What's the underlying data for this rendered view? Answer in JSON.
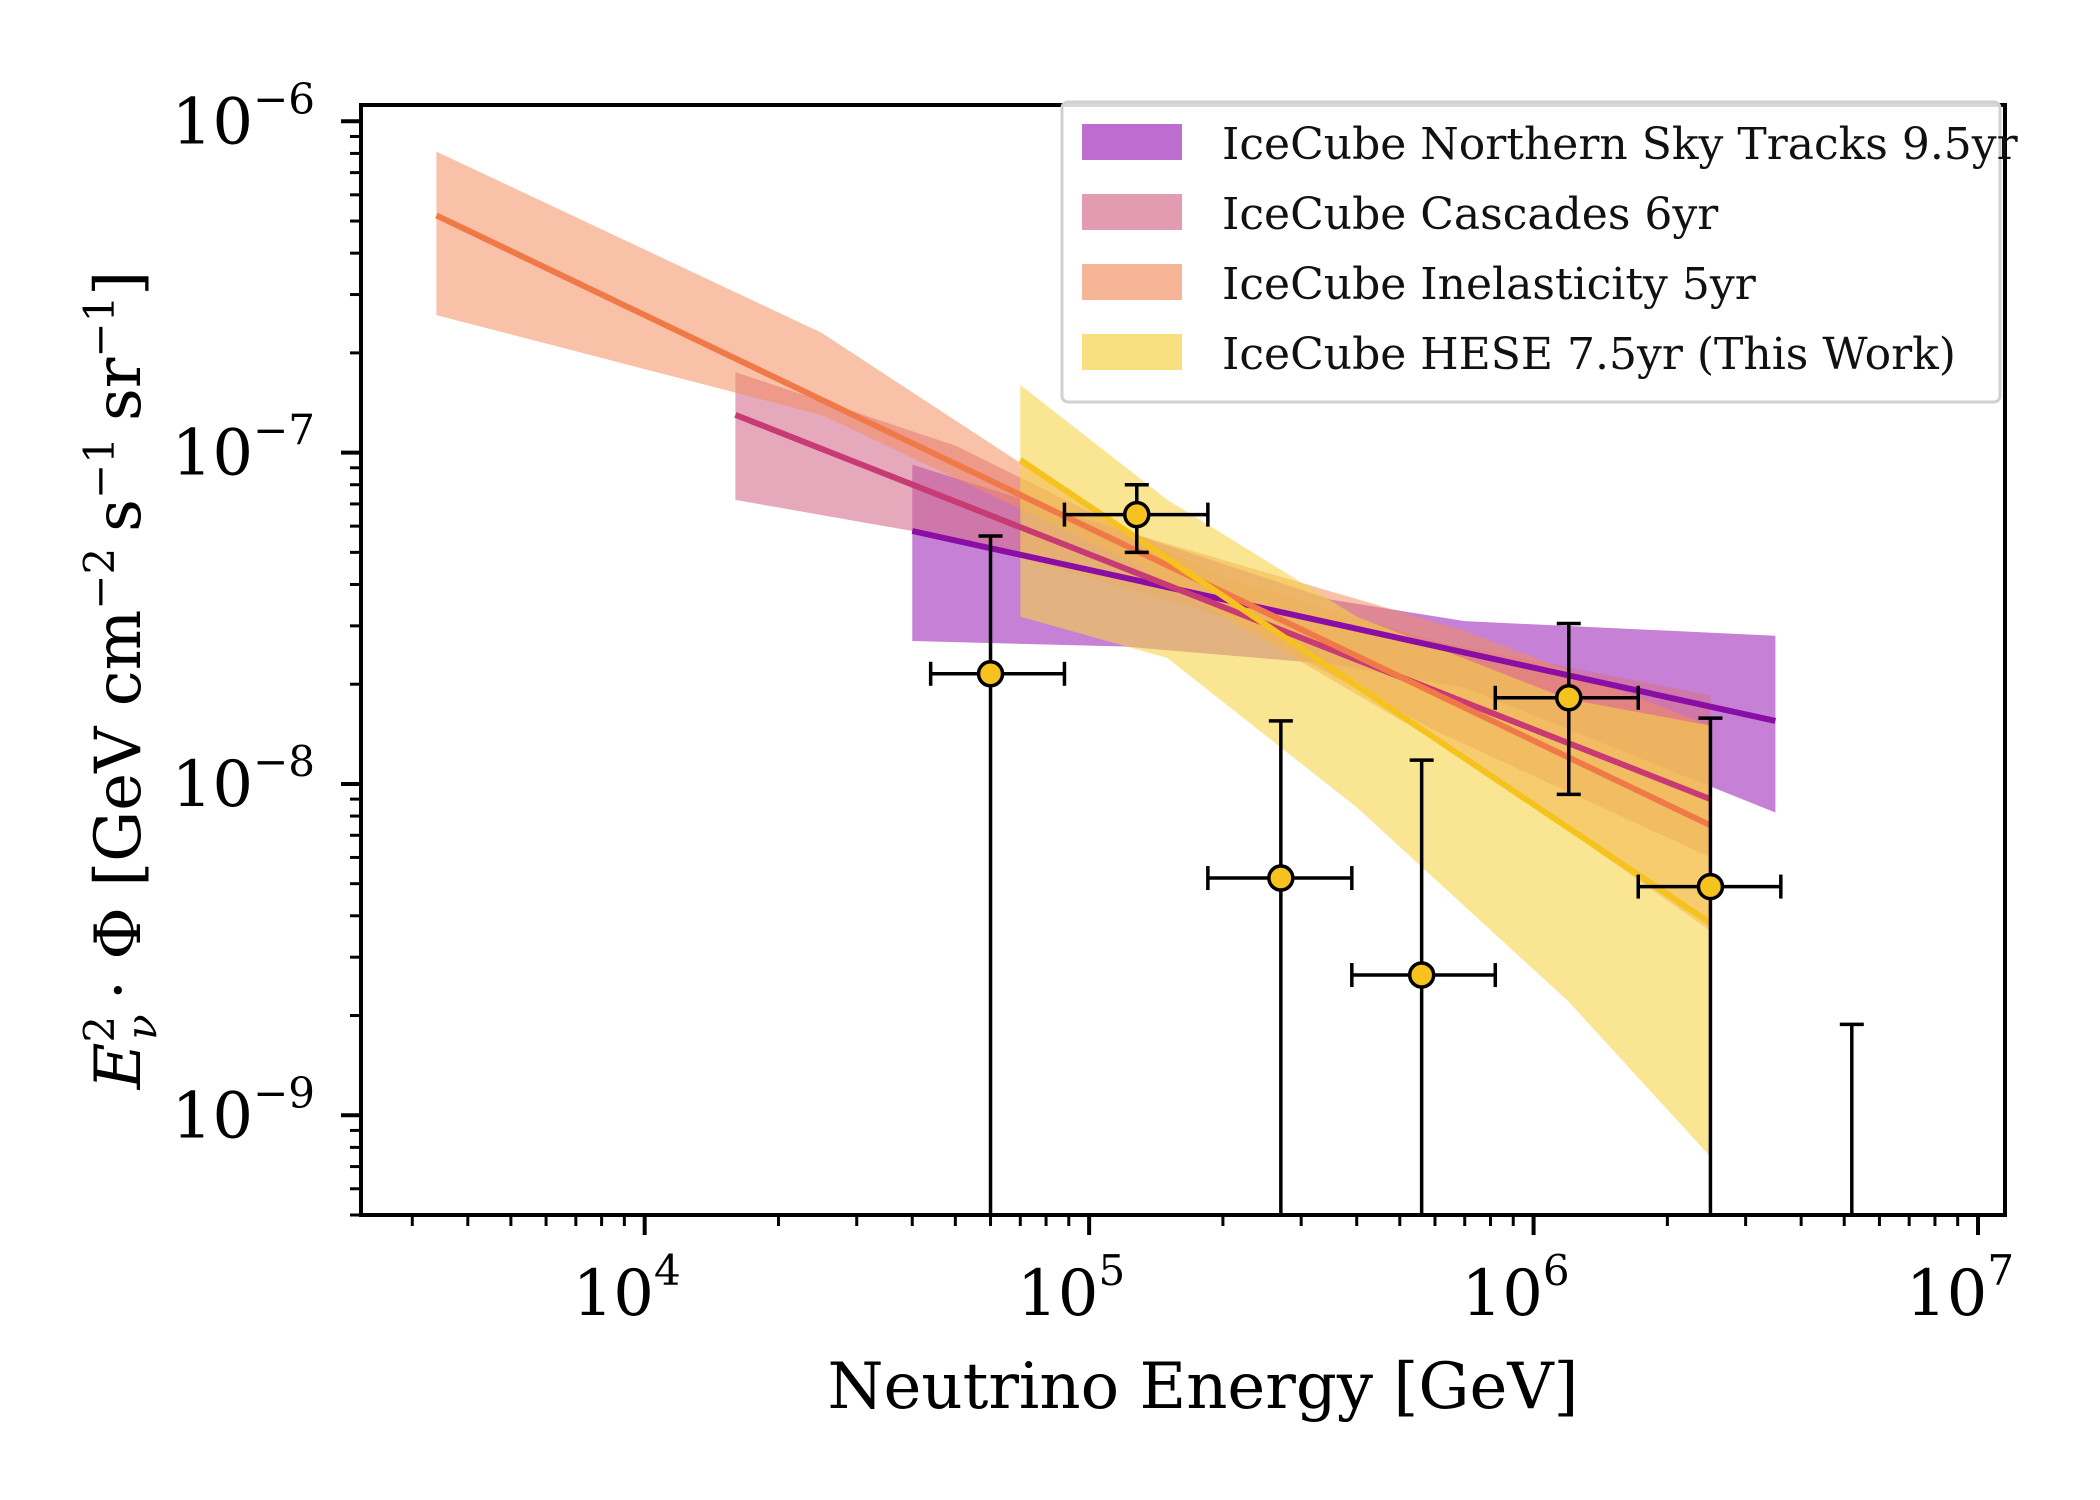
{
  "chart_data": {
    "type": "line",
    "xlabel": "Neutrino Energy [GeV]",
    "ylabel": "E²ν · Φ [GeV cm⁻² s⁻¹ sr⁻¹]",
    "ylabel_parts": {
      "E": "E",
      "sup": "2",
      "sub": "ν",
      "rest": "· Φ [GeV cm",
      "exp1": "−2",
      "mid1": "s",
      "exp2": "−1",
      "mid2": "sr",
      "exp3": "−1",
      "close": "]"
    },
    "x_scale": "log",
    "y_scale": "log",
    "xlim": [
      2300,
      11500000
    ],
    "ylim": [
      5e-10,
      1.12e-06
    ],
    "x_ticks": [
      {
        "value": 10000,
        "base": "10",
        "exp": "4"
      },
      {
        "value": 100000,
        "base": "10",
        "exp": "5"
      },
      {
        "value": 1000000,
        "base": "10",
        "exp": "6"
      },
      {
        "value": 10000000,
        "base": "10",
        "exp": "7"
      }
    ],
    "y_ticks": [
      {
        "value": 1e-09,
        "base": "10",
        "exp": "−9"
      },
      {
        "value": 1e-08,
        "base": "10",
        "exp": "−8"
      },
      {
        "value": 1e-07,
        "base": "10",
        "exp": "−7"
      },
      {
        "value": 1e-06,
        "base": "10",
        "exp": "−6"
      }
    ],
    "grid": false,
    "legend_position": "top-right",
    "series": [
      {
        "name": "IceCube Northern Sky Tracks 9.5yr",
        "line_color": "#8a0ea6",
        "band_color": "#a73cbf",
        "band_opacity": 0.65,
        "line": [
          [
            40000,
            5.8e-08
          ],
          [
            3500000,
            1.55e-08
          ]
        ],
        "band": [
          [
            40000,
            9.2e-08,
            2.7e-08
          ],
          [
            120000,
            5.8e-08,
            2.6e-08
          ],
          [
            350000,
            3.6e-08,
            2.3e-08
          ],
          [
            700000,
            3.1e-08,
            1.95e-08
          ],
          [
            3500000,
            2.8e-08,
            8.2e-09
          ]
        ]
      },
      {
        "name": "IceCube Cascades 6yr",
        "line_color": "#c83a73",
        "band_color": "#d5708f",
        "band_opacity": 0.6,
        "line": [
          [
            16000,
            1.3e-07
          ],
          [
            2500000,
            9e-09
          ]
        ],
        "band": [
          [
            16000,
            1.75e-07,
            7.2e-08
          ],
          [
            50000,
            1.05e-07,
            5.5e-08
          ],
          [
            200000,
            4.2e-08,
            3.2e-08
          ],
          [
            600000,
            2.7e-08,
            1.45e-08
          ],
          [
            2500000,
            1.85e-08,
            6e-09
          ]
        ]
      },
      {
        "name": "IceCube Inelasticity 5yr",
        "line_color": "#ef7a48",
        "band_color": "#f28e60",
        "band_opacity": 0.55,
        "line": [
          [
            3400,
            5.2e-07
          ],
          [
            2500000,
            7.5e-09
          ]
        ],
        "band": [
          [
            3400,
            8.1e-07,
            2.6e-07
          ],
          [
            25000,
            2.3e-07,
            1.3e-07
          ],
          [
            120000,
            5.8e-08,
            4.8e-08
          ],
          [
            700000,
            2.9e-08,
            1.2e-08
          ],
          [
            2500000,
            1.5e-08,
            3.6e-09
          ]
        ]
      },
      {
        "name": "IceCube HESE 7.5yr (This Work)",
        "line_color": "#f6c21d",
        "band_color": "#f5d34a",
        "band_opacity": 0.6,
        "line": [
          [
            70000,
            9.5e-08
          ],
          [
            2500000,
            3.8e-09
          ]
        ],
        "band": [
          [
            70000,
            1.6e-07,
            3.2e-08
          ],
          [
            150000,
            7.2e-08,
            2.4e-08
          ],
          [
            400000,
            3.2e-08,
            8.5e-09
          ],
          [
            1200000,
            1.8e-08,
            2.2e-09
          ],
          [
            2500000,
            1.5e-08,
            7.5e-10
          ]
        ]
      }
    ],
    "data_points": {
      "marker_color": "#f6c21d",
      "points": [
        {
          "x": 60000,
          "xlo": 44000,
          "xhi": 88000,
          "y": 2.15e-08,
          "ylo": 5e-10,
          "yhi": 5.6e-08
        },
        {
          "x": 128000,
          "xlo": 88000,
          "xhi": 185000,
          "y": 6.5e-08,
          "ylo": 5e-08,
          "yhi": 8e-08
        },
        {
          "x": 270000,
          "xlo": 185000,
          "xhi": 390000,
          "y": 5.2e-09,
          "ylo": 5e-10,
          "yhi": 1.55e-08
        },
        {
          "x": 560000,
          "xlo": 390000,
          "xhi": 820000,
          "y": 2.65e-09,
          "ylo": 5e-10,
          "yhi": 1.18e-08
        },
        {
          "x": 1200000,
          "xlo": 820000,
          "xhi": 1720000,
          "y": 1.82e-08,
          "ylo": 9.3e-09,
          "yhi": 3.05e-08
        },
        {
          "x": 2500000,
          "xlo": 1720000,
          "xhi": 3600000,
          "y": 4.9e-09,
          "ylo": 5e-10,
          "yhi": 1.58e-08
        }
      ],
      "upper_limits": [
        {
          "x": 5200000,
          "ylo": 5e-10,
          "yhi": 1.88e-09
        }
      ]
    }
  }
}
